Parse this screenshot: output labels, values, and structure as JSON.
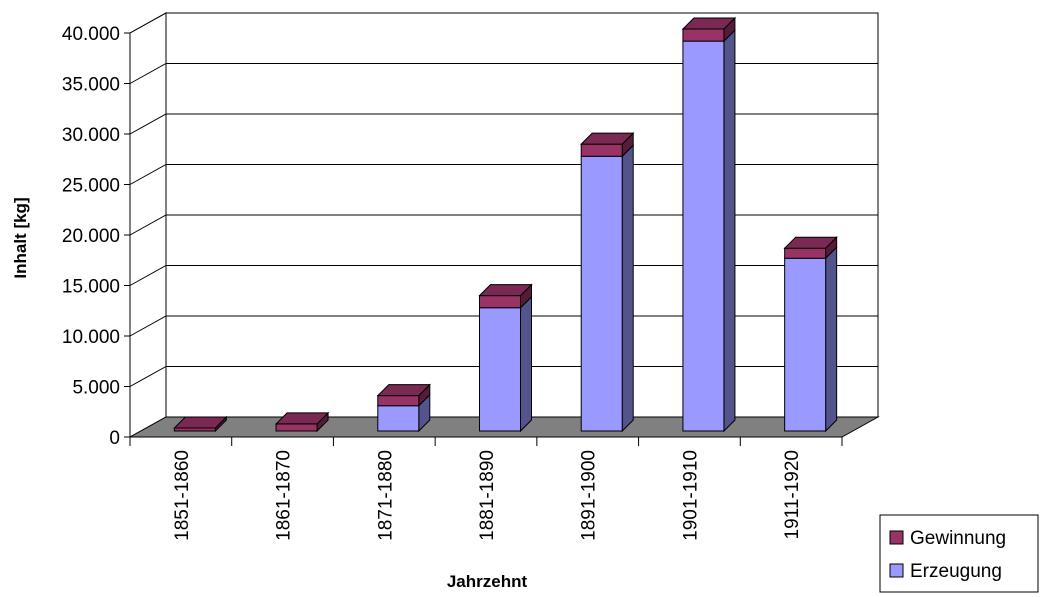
{
  "chart_data": {
    "type": "bar",
    "stacked": true,
    "three_d": true,
    "categories": [
      "1851-1860",
      "1861-1870",
      "1871-1880",
      "1881-1890",
      "1891-1900",
      "1901-1910",
      "1911-1920"
    ],
    "series": [
      {
        "name": "Erzeugung",
        "color": "#9999FF",
        "values": [
          0,
          0,
          2500,
          12200,
          27200,
          38600,
          17100
        ]
      },
      {
        "name": "Gewinnung",
        "color": "#993366",
        "values": [
          300,
          700,
          1000,
          1200,
          1200,
          1200,
          1000
        ]
      }
    ],
    "xlabel": "Jahrzehnt",
    "ylabel": "Inhalt [kg]",
    "ylim": [
      0,
      40000
    ],
    "y_ticks": [
      0,
      5000,
      10000,
      15000,
      20000,
      25000,
      30000,
      35000,
      40000
    ],
    "y_tick_labels": [
      "0",
      "5.000",
      "10.000",
      "15.000",
      "20.000",
      "25.000",
      "30.000",
      "35.000",
      "40.000"
    ],
    "floor_color": "#808080",
    "grid": true,
    "legend": {
      "position": "bottom-right",
      "order": [
        "Gewinnung",
        "Erzeugung"
      ]
    }
  }
}
